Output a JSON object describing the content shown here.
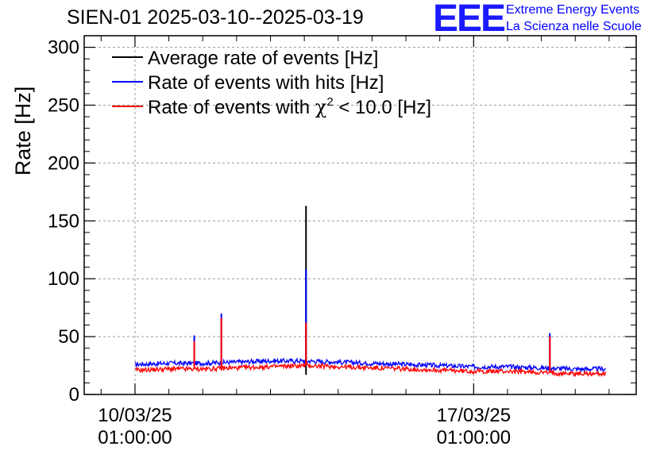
{
  "header": {
    "title": "SIEN-01 2025-03-10--2025-03-19",
    "logo": "EEE",
    "logo_line1": "Extreme Energy Events",
    "logo_line2": "La Scienza nelle Scuole"
  },
  "colors": {
    "avg": "#000000",
    "hits": "#0000ff",
    "chi2": "#ff0000",
    "logo": "#1a1aff"
  },
  "chart_data": {
    "type": "line",
    "title": "SIEN-01 2025-03-10--2025-03-19",
    "ylabel": "Rate [Hz]",
    "xlabel": "",
    "xlim_days": [
      -1.5,
      14.8
    ],
    "ylim": [
      0,
      310
    ],
    "yticks": [
      0,
      50,
      100,
      150,
      200,
      250,
      300
    ],
    "xticks": [
      {
        "day": 0,
        "line1": "10/03/25",
        "line2": "01:00:00"
      },
      {
        "day": 10,
        "line1": "17/03/25",
        "line2": "01:00:00"
      }
    ],
    "grid": true,
    "legend": {
      "position": "top-left",
      "entries": [
        {
          "key": "avg",
          "text": "Average rate of events [Hz]"
        },
        {
          "key": "hits",
          "text": "Rate of events with hits [Hz]"
        },
        {
          "key": "chi2",
          "text_main": "Rate of events with ",
          "chi": "χ",
          "sup": "2",
          "text_rest": " < 10.0 [Hz]"
        }
      ]
    },
    "series": [
      {
        "name": "Rate of events with hits [Hz]",
        "key": "hits",
        "x": [
          0,
          1,
          2,
          3,
          4,
          5,
          6,
          7,
          8,
          9,
          10,
          11,
          12,
          13,
          13.9
        ],
        "y": [
          26,
          27,
          27,
          28,
          29,
          29,
          28,
          27,
          26,
          25,
          24,
          24,
          23,
          22,
          22
        ],
        "spikes": [
          {
            "x": 1.75,
            "y": 51
          },
          {
            "x": 2.55,
            "y": 70
          },
          {
            "x": 5.05,
            "y": 108
          },
          {
            "x": 12.25,
            "y": 53
          }
        ]
      },
      {
        "name": "Rate of events with χ2 < 10.0 [Hz]",
        "key": "chi2",
        "x": [
          0,
          1,
          2,
          3,
          4,
          5,
          6,
          7,
          8,
          9,
          10,
          11,
          12,
          13,
          13.9
        ],
        "y": [
          21,
          22,
          22,
          23,
          24,
          25,
          24,
          23,
          22,
          21,
          20,
          20,
          19,
          18,
          18
        ],
        "spikes": [
          {
            "x": 1.75,
            "y": 46
          },
          {
            "x": 2.55,
            "y": 66
          },
          {
            "x": 5.05,
            "y": 62
          },
          {
            "x": 12.25,
            "y": 50
          }
        ]
      },
      {
        "name": "Average rate of events [Hz]",
        "key": "avg",
        "spikes": [
          {
            "x": 5.05,
            "y": 163
          }
        ]
      }
    ]
  }
}
